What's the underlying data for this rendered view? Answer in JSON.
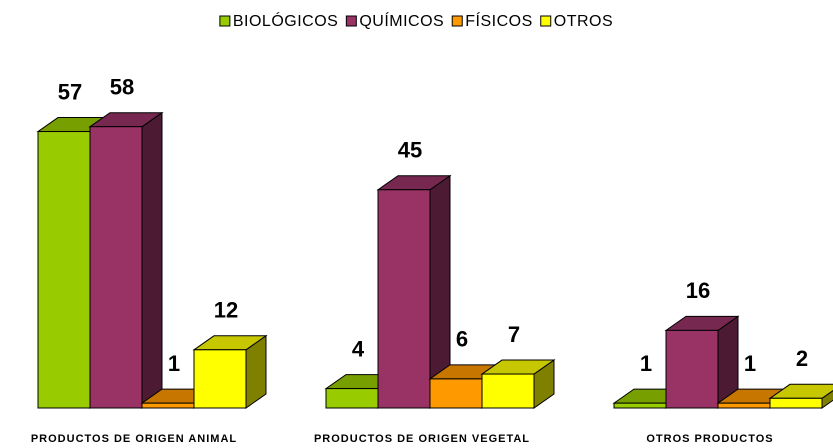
{
  "chart_data": {
    "type": "bar3d",
    "categories": [
      "PRODUCTOS DE ORIGEN ANIMAL",
      "PRODUCTOS DE ORIGEN VEGETAL",
      "OTROS PRODUCTOS"
    ],
    "series": [
      {
        "name": "BIOLÓGICOS",
        "color": "#99cc00",
        "values": [
          57,
          4,
          1
        ]
      },
      {
        "name": "QUÍMICOS",
        "color": "#993366",
        "values": [
          58,
          45,
          16
        ]
      },
      {
        "name": "FÍSICOS",
        "color": "#ff9900",
        "values": [
          1,
          6,
          1
        ]
      },
      {
        "name": "OTROS",
        "color": "#ffff00",
        "values": [
          12,
          7,
          2
        ]
      }
    ],
    "legend": "top"
  }
}
